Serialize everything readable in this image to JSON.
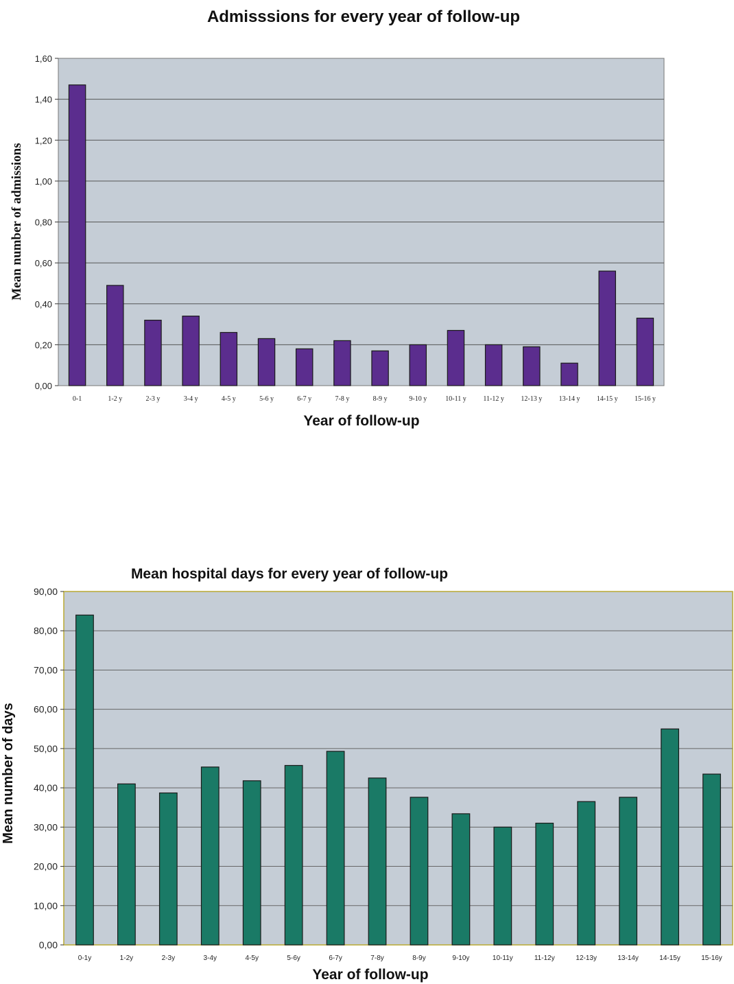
{
  "chart_data": [
    {
      "type": "bar",
      "title": "Admisssions for every year of  follow-up",
      "xlabel": "Year of follow-up",
      "ylabel": "Mean number of  admissions",
      "categories": [
        "0-1",
        "1-2 y",
        "2-3 y",
        "3-4 y",
        "4-5 y",
        "5-6 y",
        "6-7 y",
        "7-8 y",
        "8-9 y",
        "9-10 y",
        "10-11 y",
        "11-12 y",
        "12-13 y",
        "13-14 y",
        "14-15 y",
        "15-16 y"
      ],
      "values": [
        1.47,
        0.49,
        0.32,
        0.34,
        0.26,
        0.23,
        0.18,
        0.22,
        0.17,
        0.2,
        0.27,
        0.2,
        0.19,
        0.11,
        0.56,
        0.33
      ],
      "ylim": [
        0,
        1.6
      ],
      "yticks": [
        "0,00",
        "0,20",
        "0,40",
        "0,60",
        "0,80",
        "1,00",
        "1,20",
        "1,40",
        "1,60"
      ],
      "grid": true,
      "colors": {
        "bar": "#5b2d8e",
        "plot_bg": "#c5cdd6",
        "grid": "#555555"
      }
    },
    {
      "type": "bar",
      "title": "Mean hospital days for every year of follow-up",
      "xlabel": "Year of follow-up",
      "ylabel": "Mean number of days",
      "categories": [
        "0-1y",
        "1-2y",
        "2-3y",
        "3-4y",
        "4-5y",
        "5-6y",
        "6-7y",
        "7-8y",
        "8-9y",
        "9-10y",
        "10-11y",
        "11-12y",
        "12-13y",
        "13-14y",
        "14-15y",
        "15-16y"
      ],
      "values": [
        84,
        41,
        38.7,
        45.3,
        41.8,
        45.7,
        49.3,
        42.5,
        37.6,
        33.4,
        30,
        31,
        36.5,
        37.6,
        55,
        43.5
      ],
      "ylim": [
        0,
        90
      ],
      "yticks": [
        "0,00",
        "10,00",
        "20,00",
        "30,00",
        "40,00",
        "50,00",
        "60,00",
        "70,00",
        "80,00",
        "90,00"
      ],
      "grid": true,
      "colors": {
        "bar": "#1a7a66",
        "plot_bg": "#c5cdd6",
        "grid": "#666666"
      }
    }
  ]
}
